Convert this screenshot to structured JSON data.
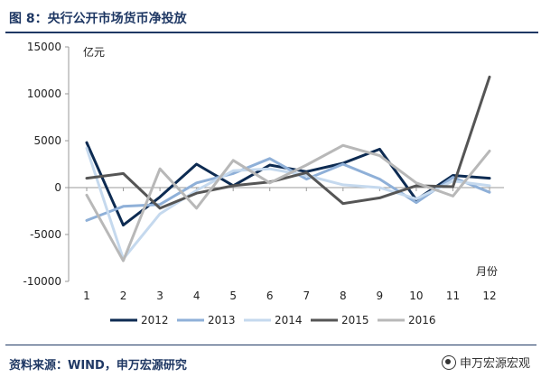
{
  "header": {
    "title": "图 8：央行公开市场货币净投放"
  },
  "footer": {
    "source": "资料来源：WIND，申万宏源研究",
    "watermark": "申万宏源宏观"
  },
  "chart_data": {
    "type": "line",
    "title": "",
    "ylabel": "亿元",
    "xlabel": "月份",
    "ylim": [
      -10000,
      15000
    ],
    "yticks": [
      -10000,
      -5000,
      0,
      5000,
      10000,
      15000
    ],
    "categories": [
      "1",
      "2",
      "3",
      "4",
      "5",
      "6",
      "7",
      "8",
      "9",
      "10",
      "11",
      "12"
    ],
    "legend_position": "bottom",
    "series": [
      {
        "name": "2012",
        "color": "#0d2b52",
        "values": [
          4800,
          -4000,
          -1000,
          2500,
          200,
          2400,
          1700,
          2600,
          4100,
          -1300,
          1300,
          1000
        ]
      },
      {
        "name": "2013",
        "color": "#8fb0d8",
        "values": [
          -3500,
          -2000,
          -1800,
          500,
          1500,
          3100,
          900,
          2500,
          900,
          -1600,
          1100,
          -500
        ]
      },
      {
        "name": "2014",
        "color": "#c5d9ee",
        "values": [
          4200,
          -7600,
          -2800,
          -300,
          1800,
          2000,
          1300,
          300,
          0,
          -1200,
          700,
          200
        ]
      },
      {
        "name": "2015",
        "color": "#555555",
        "values": [
          1000,
          1500,
          -2200,
          -600,
          200,
          600,
          1600,
          -1700,
          -1100,
          200,
          100,
          11800
        ]
      },
      {
        "name": "2016",
        "color": "#b8b8b8",
        "values": [
          -800,
          -7800,
          2000,
          -2200,
          2900,
          500,
          2400,
          4500,
          3400,
          500,
          -900,
          3900
        ]
      }
    ]
  }
}
